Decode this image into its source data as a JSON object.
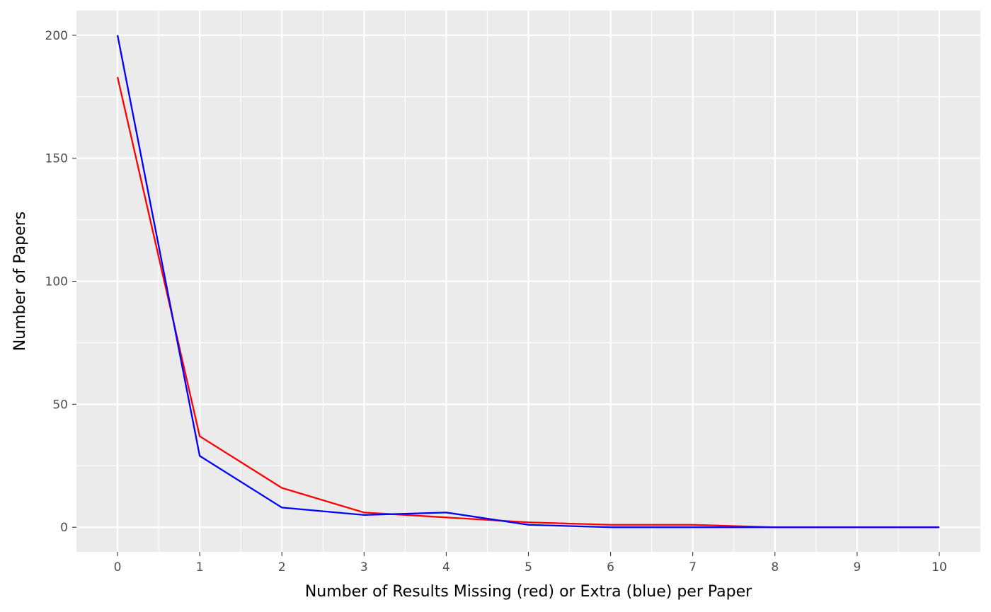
{
  "chart_data": {
    "type": "line",
    "title": "",
    "xlabel": "Number of Results Missing (red) or Extra (blue) per Paper",
    "ylabel": "Number of Papers",
    "x": [
      0,
      1,
      2,
      3,
      4,
      5,
      6,
      7,
      8,
      9,
      10
    ],
    "xlim": [
      -0.5,
      10.5
    ],
    "ylim": [
      -10,
      210
    ],
    "x_ticks": [
      0,
      1,
      2,
      3,
      4,
      5,
      6,
      7,
      8,
      9,
      10
    ],
    "y_ticks": [
      0,
      50,
      100,
      150,
      200
    ],
    "grid": true,
    "legend": "none",
    "series": [
      {
        "color": "#ff0000",
        "values": [
          183,
          37,
          16,
          6,
          4,
          2,
          1,
          1,
          0,
          0,
          0
        ]
      },
      {
        "color": "#0000ff",
        "values": [
          200,
          29,
          8,
          5,
          6,
          1,
          0,
          0,
          0,
          0,
          0
        ]
      }
    ],
    "panel_background": "#ebebeb",
    "grid_color": "#ffffff"
  }
}
